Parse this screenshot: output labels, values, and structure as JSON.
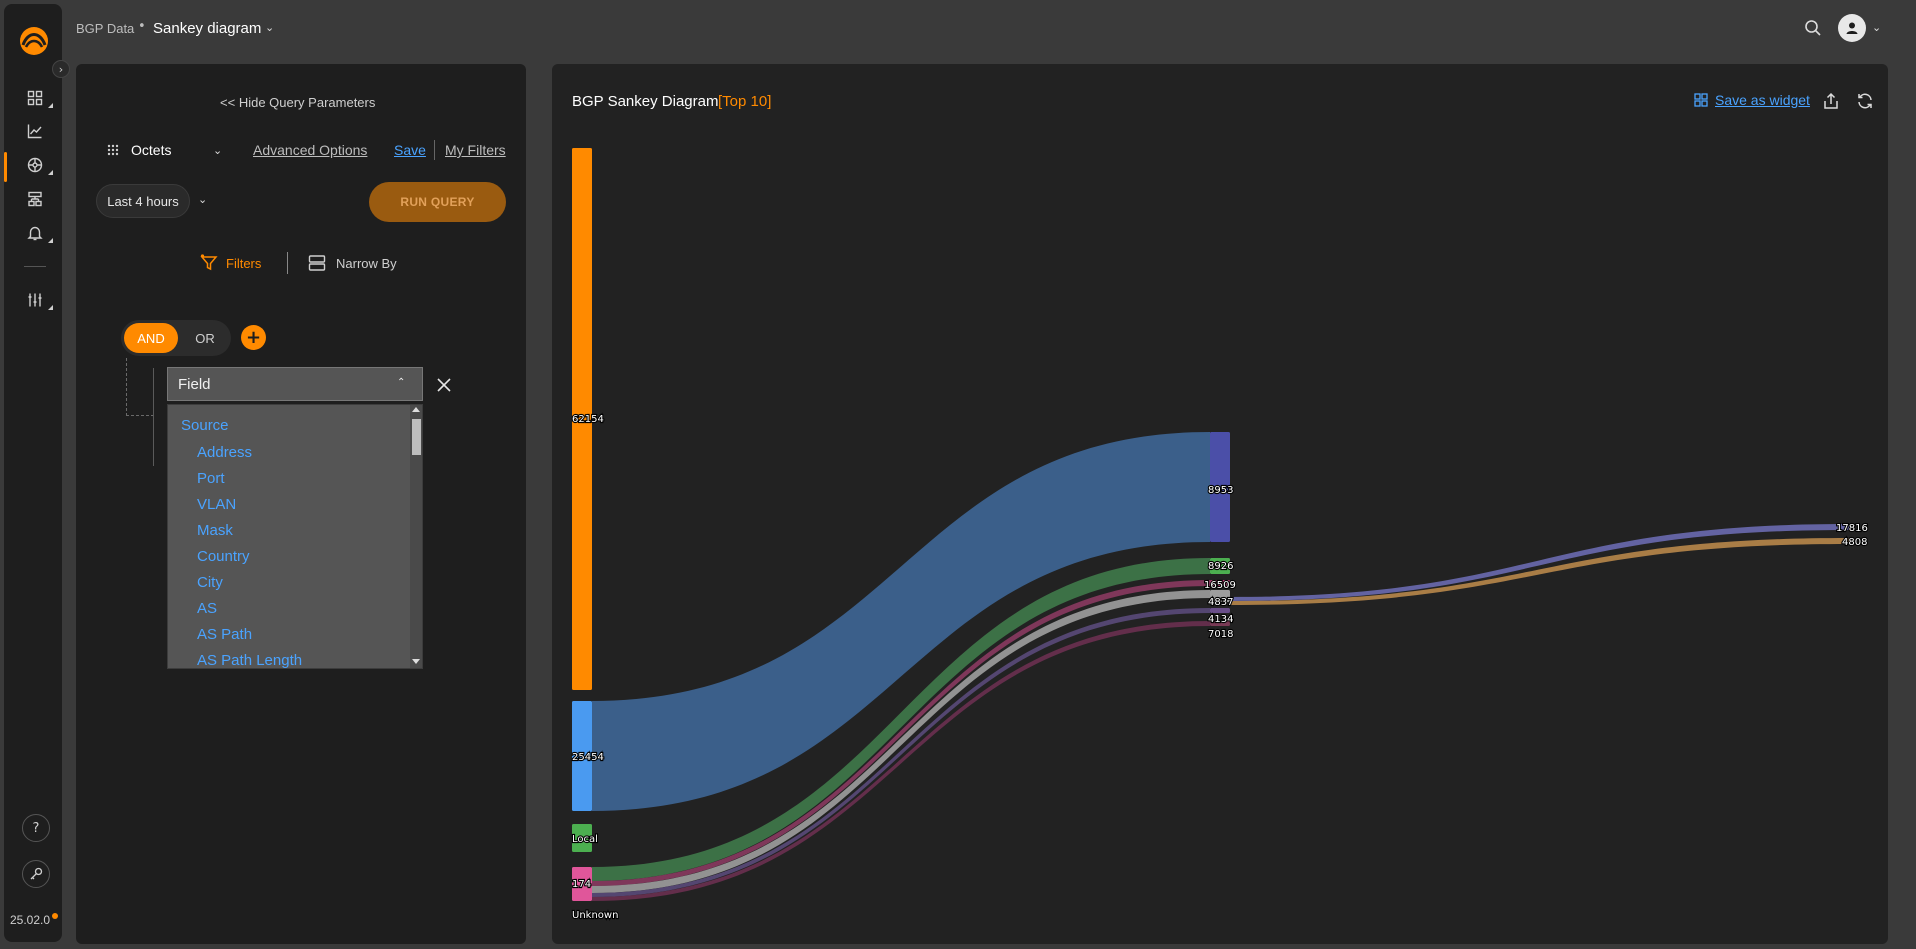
{
  "header": {
    "breadcrumb_root": "BGP Data",
    "breadcrumb_sep": "•",
    "page_title": "Sankey diagram"
  },
  "rail": {
    "version": "25.02.0",
    "items": [
      "dashboard-icon",
      "chart-icon",
      "network-icon",
      "topology-icon",
      "bell-icon",
      "sliders-icon"
    ],
    "footer": [
      "help-icon",
      "key-icon"
    ]
  },
  "query": {
    "hide_label": "Hide Query Parameters",
    "metric": "Octets",
    "advanced_options": "Advanced Options",
    "save": "Save",
    "my_filters": "My Filters",
    "time_range": "Last 4 hours",
    "run_query": "RUN QUERY",
    "tabs": {
      "filters": "Filters",
      "narrow_by": "Narrow By"
    },
    "logic": {
      "and": "AND",
      "or": "OR",
      "add": "+"
    },
    "field": {
      "label": "Field",
      "group": "Source",
      "options": [
        "Address",
        "Port",
        "VLAN",
        "Mask",
        "Country",
        "City",
        "AS",
        "AS Path",
        "AS Path Length"
      ]
    }
  },
  "chart": {
    "title": "BGP Sankey Diagram",
    "tag": "[Top 10]",
    "save_widget": "Save as widget",
    "colors": {
      "accent": "#ff8a00",
      "link": "#4aa3ff"
    }
  },
  "chart_data": {
    "type": "sankey",
    "nodes": [
      {
        "id": "n1",
        "label": "62154",
        "column": 0,
        "color": "#ff8a00",
        "value": 62154
      },
      {
        "id": "n2",
        "label": "25454",
        "column": 0,
        "color": "#4a9af0",
        "value": 25454
      },
      {
        "id": "n3",
        "label": "Local",
        "column": 0,
        "color": "#4caf50",
        "value": 5
      },
      {
        "id": "n4",
        "label": "174",
        "column": 0,
        "color": "#e0569a",
        "value": 8
      },
      {
        "id": "n4b",
        "label": "Unknown",
        "column": 0,
        "color": "#e0569a",
        "value": 0
      },
      {
        "id": "m1",
        "label": "8953",
        "column": 1,
        "color": "#4b4fa8",
        "value": 25454
      },
      {
        "id": "m2",
        "label": "8926",
        "column": 1,
        "color": "#4caf50",
        "value": 4
      },
      {
        "id": "m3",
        "label": "16509",
        "column": 1,
        "color": "#c2437a",
        "value": 1
      },
      {
        "id": "m4",
        "label": "4837",
        "column": 1,
        "color": "#9e9e9e",
        "value": 2
      },
      {
        "id": "m5",
        "label": "4134",
        "column": 1,
        "color": "#6a4f8a",
        "value": 1
      },
      {
        "id": "m6",
        "label": "7018",
        "column": 1,
        "color": "#7a3a55",
        "value": 1
      },
      {
        "id": "r1",
        "label": "17816",
        "column": 2,
        "color": "#6a6ab0",
        "value": 1
      },
      {
        "id": "r2",
        "label": "4808",
        "column": 2,
        "color": "#b8874a",
        "value": 1
      }
    ],
    "links": [
      {
        "source": "25454",
        "target": "8953",
        "color": "#3f6a9c"
      },
      {
        "source": "174",
        "target": "8926",
        "color": "#3f7a4a"
      },
      {
        "source": "174",
        "target": "16509",
        "color": "#8a3a60"
      },
      {
        "source": "174",
        "target": "4837",
        "color": "#9e9e9e"
      },
      {
        "source": "174",
        "target": "4134",
        "color": "#5a4a7a"
      },
      {
        "source": "174",
        "target": "7018",
        "color": "#6a3050"
      },
      {
        "source": "4837",
        "target": "17816",
        "color": "#6a6ab0"
      },
      {
        "source": "4837",
        "target": "4808",
        "color": "#b8874a"
      }
    ]
  }
}
